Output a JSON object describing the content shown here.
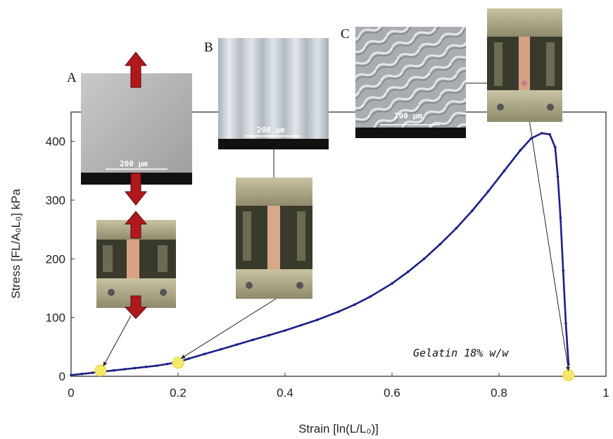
{
  "chart_data": {
    "type": "scatter",
    "xlabel": "Strain [ln(L/L₀)]",
    "ylabel": "Stress [FL/A₀L₀] kPa",
    "xlim": [
      0,
      1
    ],
    "ylim": [
      0,
      450
    ],
    "x_ticks": [
      "0",
      "0.2",
      "0.4",
      "0.6",
      "0.8",
      "1"
    ],
    "y_ticks": [
      "0",
      "100",
      "200",
      "300",
      "400"
    ],
    "grid": false,
    "annotation": "Gelatin 18% w/w",
    "series": [
      {
        "color": "#1a1f86",
        "points": [
          [
            0,
            2
          ],
          [
            0.02,
            4
          ],
          [
            0.04,
            6
          ],
          [
            0.06,
            8
          ],
          [
            0.08,
            10
          ],
          [
            0.1,
            12
          ],
          [
            0.12,
            14
          ],
          [
            0.14,
            16
          ],
          [
            0.16,
            18
          ],
          [
            0.18,
            21
          ],
          [
            0.2,
            24
          ],
          [
            0.22,
            30
          ],
          [
            0.25,
            38
          ],
          [
            0.28,
            46
          ],
          [
            0.31,
            54
          ],
          [
            0.34,
            62
          ],
          [
            0.37,
            70
          ],
          [
            0.4,
            78
          ],
          [
            0.43,
            87
          ],
          [
            0.46,
            96
          ],
          [
            0.5,
            110
          ],
          [
            0.53,
            122
          ],
          [
            0.56,
            136
          ],
          [
            0.6,
            158
          ],
          [
            0.63,
            178
          ],
          [
            0.66,
            200
          ],
          [
            0.69,
            225
          ],
          [
            0.72,
            252
          ],
          [
            0.75,
            282
          ],
          [
            0.78,
            315
          ],
          [
            0.81,
            350
          ],
          [
            0.84,
            385
          ],
          [
            0.86,
            405
          ],
          [
            0.88,
            414
          ],
          [
            0.895,
            412
          ],
          [
            0.905,
            390
          ],
          [
            0.91,
            340
          ],
          [
            0.915,
            270
          ],
          [
            0.92,
            180
          ],
          [
            0.925,
            90
          ],
          [
            0.93,
            20
          ]
        ]
      }
    ],
    "highlight_points": [
      [
        0.055,
        10
      ],
      [
        0.2,
        23
      ],
      [
        0.93,
        2
      ]
    ],
    "insets": [
      {
        "letter": "A",
        "scale_label": "200 µm"
      },
      {
        "letter": "B",
        "scale_label": "200 µm"
      },
      {
        "letter": "C",
        "scale_label": "200 µm"
      }
    ]
  }
}
